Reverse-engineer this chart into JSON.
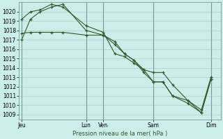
{
  "bg_color": "#cceee8",
  "grid_color": "#aad4cc",
  "line_color": "#2d5a2d",
  "vline_color": "#7a9a94",
  "xlabel": "Pression niveau de la mer( hPa )",
  "ylim": [
    1008.5,
    1021.0
  ],
  "yticks": [
    1009,
    1010,
    1011,
    1012,
    1013,
    1014,
    1015,
    1016,
    1017,
    1018,
    1019,
    1020
  ],
  "xlim": [
    0,
    10.5
  ],
  "xtick_positions": [
    0.15,
    3.5,
    4.4,
    7.0,
    10.0
  ],
  "xtick_labels": [
    "Jeu",
    "Lun",
    "Ven",
    "Sam",
    "Dim"
  ],
  "vlines_x": [
    0.15,
    3.5,
    4.4,
    7.0,
    10.0
  ],
  "series1_x": [
    0.15,
    0.6,
    1.1,
    1.7,
    2.3,
    3.5,
    4.4,
    5.0,
    5.5,
    6.0,
    6.5,
    7.0,
    7.5,
    8.0,
    8.8,
    9.5,
    10.0
  ],
  "series1_y": [
    1017.0,
    1019.2,
    1020.0,
    1020.5,
    1020.8,
    1018.0,
    1017.5,
    1016.8,
    1015.5,
    1014.8,
    1013.8,
    1012.5,
    1012.5,
    1011.0,
    1010.5,
    1009.2,
    1012.8
  ],
  "series2_x": [
    0.15,
    0.6,
    1.1,
    1.7,
    2.3,
    3.5,
    4.4,
    5.0,
    5.5,
    6.0,
    6.5,
    7.0,
    7.5,
    8.0,
    8.8,
    9.5,
    10.0
  ],
  "series2_y": [
    1017.7,
    1017.8,
    1017.8,
    1017.8,
    1017.8,
    1017.5,
    1017.5,
    1016.5,
    1015.5,
    1014.8,
    1013.5,
    1012.5,
    1012.5,
    1011.0,
    1010.2,
    1009.2,
    1012.8
  ],
  "series3_x": [
    0.15,
    0.6,
    1.1,
    1.7,
    2.3,
    3.5,
    4.4,
    5.0,
    5.5,
    6.0,
    6.5,
    7.0,
    7.5,
    8.0,
    8.8,
    9.5,
    10.0
  ],
  "series3_y": [
    1019.2,
    1020.0,
    1020.2,
    1020.8,
    1020.5,
    1018.5,
    1017.8,
    1015.5,
    1015.2,
    1014.5,
    1013.8,
    1013.5,
    1013.5,
    1012.2,
    1010.5,
    1009.5,
    1013.0
  ]
}
